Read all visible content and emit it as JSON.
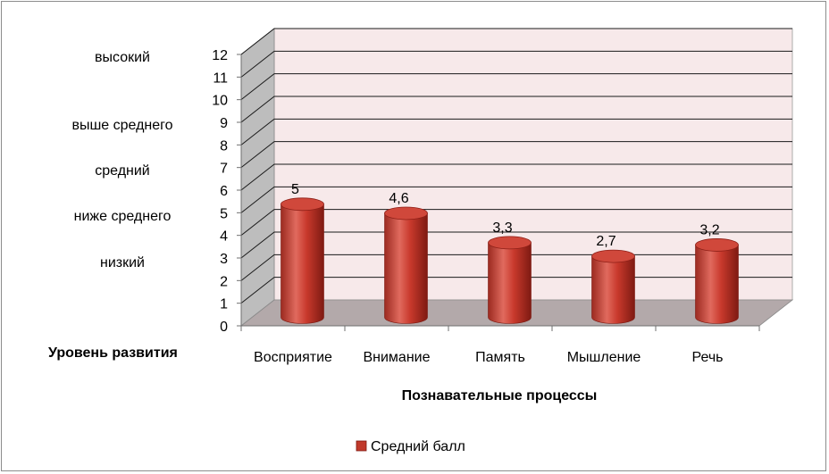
{
  "chart_data": {
    "type": "bar",
    "style": "3d-cylinder",
    "categories": [
      "Восприятие",
      "Внимание",
      "Память",
      "Мышление",
      "Речь"
    ],
    "series": [
      {
        "name": "Средний балл",
        "values": [
          5,
          4.6,
          3.3,
          2.7,
          3.2
        ],
        "data_labels": [
          "5",
          "4,6",
          "3,3",
          "2,7",
          "3,2"
        ],
        "color": "#c0392b"
      }
    ],
    "ylim": [
      0,
      12
    ],
    "y_ticks": [
      "0",
      "1",
      "2",
      "3",
      "4",
      "5",
      "6",
      "7",
      "8",
      "9",
      "10",
      "11",
      "12"
    ],
    "level_labels": [
      "высокий",
      "выше среднего",
      "средний",
      "ниже среднего",
      "низкий"
    ],
    "y_title": "Уровень развития",
    "xlabel": "Познавательные процессы",
    "legend_position": "bottom",
    "grid": true,
    "colors": {
      "wall": "#f7e9ea",
      "side_wall": "#bdbdbd",
      "floor": "#b3a9aa",
      "grid": "#1a1a1a",
      "bar": "#c0392b",
      "bar_dark": "#8e1f17",
      "bar_light": "#e8655a"
    }
  }
}
